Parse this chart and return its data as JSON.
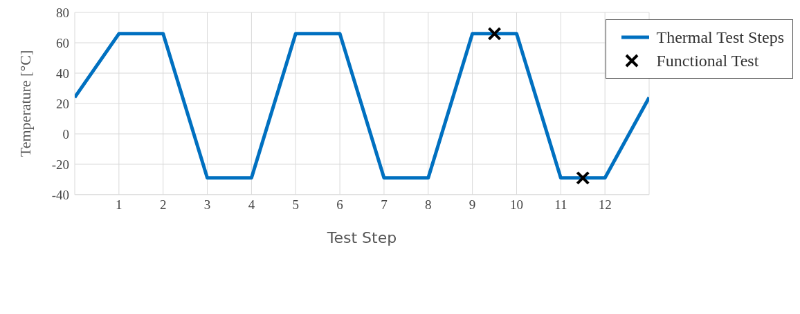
{
  "chart_data": {
    "type": "line",
    "xlabel": "Test Step",
    "ylabel": "Temperature [°C]",
    "xlim": [
      0,
      13
    ],
    "xticks": [
      1,
      2,
      3,
      4,
      5,
      6,
      7,
      8,
      9,
      10,
      11,
      12
    ],
    "ylim": [
      -40,
      80
    ],
    "yticks": [
      -40,
      -20,
      0,
      20,
      40,
      60,
      80
    ],
    "grid": true,
    "legend": "top right",
    "line_style": "solid",
    "series": [
      {
        "name": "Thermal Test Steps",
        "color": "#0070c0",
        "marker": "none",
        "x": [
          0,
          1,
          2,
          3,
          4,
          5,
          6,
          7,
          8,
          9,
          10,
          11,
          12,
          13
        ],
        "values": [
          24,
          66,
          66,
          -29,
          -29,
          66,
          66,
          -29,
          -29,
          66,
          66,
          -29,
          -29,
          24
        ]
      },
      {
        "name": "Functional Test",
        "type": "scatter",
        "color": "#000000",
        "marker": "cross",
        "x": [
          9.5,
          11.5
        ],
        "values": [
          66,
          -29
        ]
      }
    ]
  }
}
